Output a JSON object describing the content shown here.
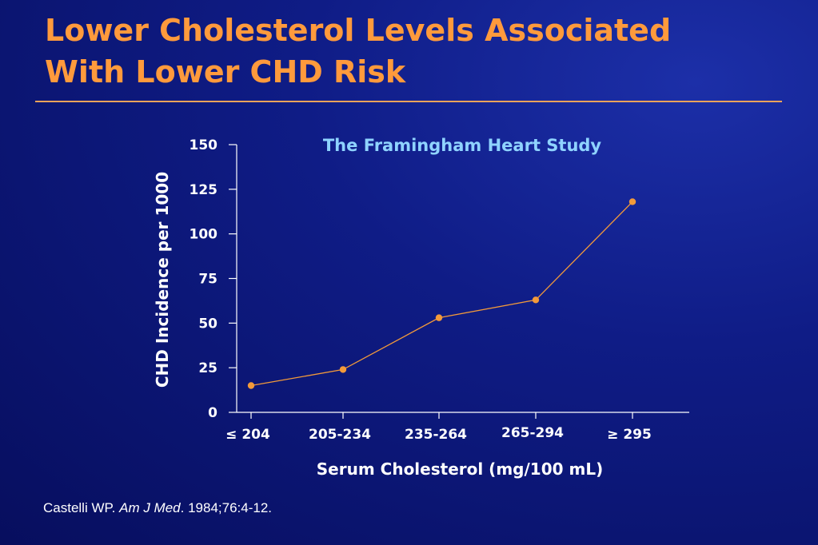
{
  "slide": {
    "title_line1": "Lower Cholesterol Levels Associated",
    "title_line2": "With Lower CHD Risk"
  },
  "citation": {
    "author": "Castelli WP. ",
    "journal": "Am J Med",
    "details": ". 1984;76:4-12."
  },
  "colors": {
    "title": "#ff9a3c",
    "line": "#f39a3a",
    "axis": "#ffffff",
    "chart_title": "#8fd3ff"
  },
  "chart_data": {
    "type": "line",
    "title": "The Framingham Heart Study",
    "xlabel": "Serum Cholesterol (mg/100 mL)",
    "ylabel": "CHD Incidence per 1000",
    "categories": [
      "≤ 204",
      "205-234",
      "235-264",
      "265-294",
      "≥ 295"
    ],
    "values": [
      15,
      24,
      53,
      63,
      118
    ],
    "ylim": [
      0,
      150
    ],
    "yticks": [
      "0",
      "25",
      "50",
      "75",
      "100",
      "125",
      "150"
    ],
    "grid": false
  }
}
